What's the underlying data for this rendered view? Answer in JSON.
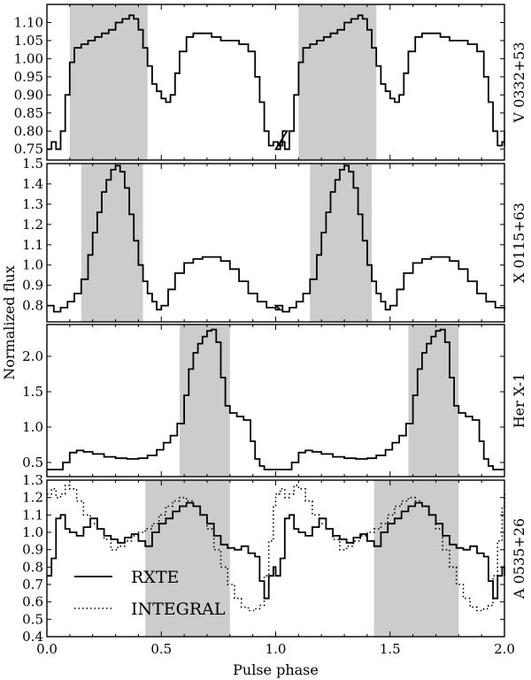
{
  "chart_data": {
    "type": "line",
    "xlabel": "Pulse phase",
    "ylabel": "Normalized flux",
    "xlim": [
      0.0,
      2.0
    ],
    "xticks": [
      "0.0",
      "0.5",
      "1.0",
      "1.5",
      "2.0"
    ],
    "shading_color": "#cccccc",
    "panels": [
      {
        "name": "V 0332+53",
        "ylim": [
          0.72,
          1.15
        ],
        "yticks": [
          "0.75",
          "0.80",
          "0.85",
          "0.90",
          "0.95",
          "1.00",
          "1.05",
          "1.10"
        ],
        "yticks_values": [
          0.75,
          0.8,
          0.85,
          0.9,
          0.95,
          1.0,
          1.05,
          1.1
        ],
        "shaded": [
          [
            0.1,
            0.44
          ]
        ],
        "series": [
          {
            "style": "solid",
            "x": [
              0.0,
              0.02,
              0.04,
              0.06,
              0.08,
              0.1,
              0.12,
              0.15,
              0.18,
              0.21,
              0.24,
              0.27,
              0.3,
              0.33,
              0.36,
              0.38,
              0.4,
              0.42,
              0.44,
              0.46,
              0.48,
              0.5,
              0.52,
              0.54,
              0.56,
              0.58,
              0.61,
              0.64,
              0.68,
              0.72,
              0.76,
              0.8,
              0.84,
              0.88,
              0.91,
              0.93,
              0.95,
              0.97,
              0.99,
              1.01,
              1.03
            ],
            "values": [
              0.75,
              0.77,
              0.75,
              0.8,
              0.9,
              0.99,
              1.03,
              1.04,
              1.05,
              1.06,
              1.07,
              1.08,
              1.1,
              1.11,
              1.12,
              1.11,
              1.08,
              1.03,
              0.98,
              0.93,
              0.91,
              0.89,
              0.88,
              0.9,
              0.96,
              1.02,
              1.06,
              1.07,
              1.07,
              1.06,
              1.05,
              1.05,
              1.04,
              1.02,
              0.95,
              0.88,
              0.8,
              0.76,
              0.77,
              0.76,
              0.8
            ]
          }
        ]
      },
      {
        "name": "X 0115+63",
        "ylim": [
          0.72,
          1.5
        ],
        "yticks": [
          "0.8",
          "0.9",
          "1.0",
          "1.1",
          "1.2",
          "1.3",
          "1.4",
          "1.5"
        ],
        "yticks_values": [
          0.8,
          0.9,
          1.0,
          1.1,
          1.2,
          1.3,
          1.4,
          1.5
        ],
        "shaded": [
          [
            0.15,
            0.42
          ]
        ],
        "series": [
          {
            "style": "solid",
            "x": [
              0.0,
              0.03,
              0.06,
              0.09,
              0.12,
              0.15,
              0.18,
              0.2,
              0.22,
              0.24,
              0.26,
              0.28,
              0.3,
              0.32,
              0.34,
              0.36,
              0.38,
              0.4,
              0.42,
              0.44,
              0.46,
              0.48,
              0.5,
              0.53,
              0.56,
              0.6,
              0.64,
              0.68,
              0.72,
              0.76,
              0.8,
              0.84,
              0.88,
              0.92,
              0.96,
              1.0
            ],
            "values": [
              0.8,
              0.77,
              0.79,
              0.82,
              0.86,
              0.93,
              1.05,
              1.16,
              1.26,
              1.36,
              1.42,
              1.47,
              1.49,
              1.46,
              1.38,
              1.25,
              1.12,
              1.0,
              0.92,
              0.86,
              0.82,
              0.78,
              0.8,
              0.88,
              0.96,
              1.01,
              1.03,
              1.04,
              1.04,
              1.02,
              0.98,
              0.92,
              0.86,
              0.82,
              0.79,
              0.78
            ]
          }
        ]
      },
      {
        "name": "Her X-1",
        "ylim": [
          0.3,
          2.45
        ],
        "yticks": [
          "0.5",
          "1.0",
          "1.5",
          "2.0"
        ],
        "yticks_values": [
          0.5,
          1.0,
          1.5,
          2.0
        ],
        "shaded": [
          [
            0.58,
            0.8
          ]
        ],
        "series": [
          {
            "style": "solid",
            "x": [
              0.0,
              0.04,
              0.07,
              0.1,
              0.13,
              0.16,
              0.2,
              0.25,
              0.3,
              0.35,
              0.4,
              0.44,
              0.48,
              0.51,
              0.54,
              0.57,
              0.6,
              0.62,
              0.64,
              0.66,
              0.68,
              0.7,
              0.72,
              0.74,
              0.76,
              0.78,
              0.8,
              0.83,
              0.86,
              0.89,
              0.91,
              0.93,
              0.95,
              0.97,
              1.0
            ],
            "values": [
              0.4,
              0.4,
              0.5,
              0.64,
              0.67,
              0.65,
              0.62,
              0.58,
              0.56,
              0.55,
              0.56,
              0.6,
              0.68,
              0.78,
              0.88,
              1.05,
              1.45,
              1.82,
              2.05,
              2.18,
              2.28,
              2.36,
              2.38,
              2.2,
              1.7,
              1.3,
              1.2,
              1.15,
              1.1,
              0.8,
              0.55,
              0.45,
              0.4,
              0.4,
              0.4
            ]
          }
        ]
      },
      {
        "name": "A 0535+26",
        "ylim": [
          0.4,
          1.3
        ],
        "yticks": [
          "0.4",
          "0.5",
          "0.6",
          "0.7",
          "0.8",
          "0.9",
          "1.0",
          "1.1",
          "1.2",
          "1.3"
        ],
        "yticks_values": [
          0.4,
          0.5,
          0.6,
          0.7,
          0.8,
          0.9,
          1.0,
          1.1,
          1.2,
          1.3
        ],
        "shaded": [
          [
            0.43,
            0.8
          ]
        ],
        "series": [
          {
            "name": "RXTE",
            "style": "solid",
            "x": [
              0.0,
              0.02,
              0.04,
              0.06,
              0.08,
              0.1,
              0.13,
              0.16,
              0.19,
              0.22,
              0.25,
              0.28,
              0.31,
              0.34,
              0.37,
              0.4,
              0.43,
              0.46,
              0.49,
              0.52,
              0.55,
              0.58,
              0.61,
              0.64,
              0.67,
              0.7,
              0.73,
              0.76,
              0.79,
              0.82,
              0.85,
              0.88,
              0.91,
              0.93,
              0.95,
              0.97,
              0.99,
              1.0
            ],
            "values": [
              0.75,
              0.85,
              1.08,
              1.1,
              1.02,
              1.0,
              0.98,
              1.03,
              1.08,
              1.02,
              0.98,
              0.96,
              0.94,
              0.97,
              0.99,
              0.95,
              0.92,
              1.0,
              1.05,
              1.08,
              1.12,
              1.15,
              1.17,
              1.15,
              1.1,
              1.05,
              0.98,
              0.93,
              0.91,
              0.9,
              0.92,
              0.88,
              0.86,
              0.72,
              0.62,
              0.75,
              0.8,
              0.75
            ]
          },
          {
            "name": "INTEGRAL",
            "style": "dotted",
            "x": [
              0.0,
              0.02,
              0.04,
              0.06,
              0.08,
              0.1,
              0.13,
              0.16,
              0.19,
              0.22,
              0.25,
              0.28,
              0.31,
              0.34,
              0.37,
              0.4,
              0.43,
              0.46,
              0.49,
              0.52,
              0.55,
              0.58,
              0.61,
              0.64,
              0.67,
              0.7,
              0.73,
              0.76,
              0.79,
              0.82,
              0.85,
              0.88,
              0.91,
              0.93,
              0.95,
              0.97,
              0.99,
              1.0
            ],
            "values": [
              1.22,
              1.25,
              1.2,
              1.22,
              1.27,
              1.25,
              1.18,
              1.1,
              1.05,
              1.02,
              0.96,
              0.9,
              0.92,
              0.95,
              0.98,
              1.0,
              1.02,
              1.05,
              1.1,
              1.15,
              1.18,
              1.2,
              1.18,
              1.15,
              1.1,
              1.02,
              0.9,
              0.8,
              0.7,
              0.62,
              0.57,
              0.55,
              0.56,
              0.58,
              0.75,
              0.95,
              1.15,
              1.22
            ]
          }
        ]
      }
    ]
  }
}
